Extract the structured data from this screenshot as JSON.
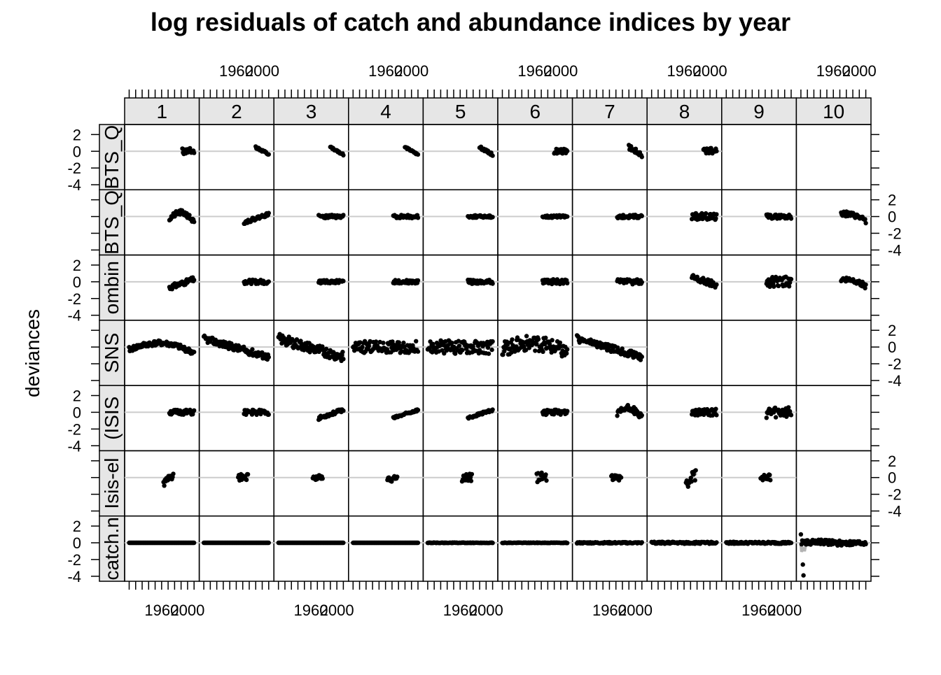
{
  "chart_data": {
    "type": "scatter",
    "title": "log residuals of catch and abundance indices by year",
    "xlabel": "",
    "ylabel": "deviances",
    "xlim": [
      1903,
      2018
    ],
    "ylim": [
      -4.6,
      3.2
    ],
    "x_tick_labels": [
      "1960",
      "2000"
    ],
    "y_tick_labels": [
      "2",
      "0",
      "-2",
      "-4"
    ],
    "y_ticks": [
      2,
      0,
      -2,
      -4
    ],
    "x_ticks": [
      1910,
      1920,
      1930,
      1940,
      1950,
      1960,
      1970,
      1980,
      1990,
      2000,
      2010
    ],
    "reference_line": 0,
    "grid": false,
    "point_color": "#000000",
    "smoother_color": "#b3b3b3",
    "refline_color": "#cccccc",
    "strip_color": "#e6e6e6",
    "ages": [
      "1",
      "2",
      "3",
      "4",
      "5",
      "6",
      "7",
      "8",
      "9",
      "10"
    ],
    "index_strip_labels": [
      "BTS_Q",
      "BTS_Q",
      "ombin",
      "SNS",
      "(ISIS",
      "Isis-el",
      "catch.n"
    ],
    "panels": [
      {
        "row": 0,
        "age": 1,
        "x0": 1992,
        "x1": 2010,
        "shape": "flat",
        "noise": 0.4,
        "seed": 11
      },
      {
        "row": 0,
        "age": 2,
        "x0": 1990,
        "x1": 2010,
        "shape": "down",
        "noise": 0.15,
        "seed": 12
      },
      {
        "row": 0,
        "age": 3,
        "x0": 1990,
        "x1": 2010,
        "shape": "down",
        "noise": 0.1,
        "seed": 13
      },
      {
        "row": 0,
        "age": 4,
        "x0": 1990,
        "x1": 2010,
        "shape": "down",
        "noise": 0.1,
        "seed": 14
      },
      {
        "row": 0,
        "age": 5,
        "x0": 1990,
        "x1": 2010,
        "shape": "down",
        "noise": 0.15,
        "seed": 15
      },
      {
        "row": 0,
        "age": 6,
        "x0": 1990,
        "x1": 2010,
        "shape": "flat",
        "noise": 0.3,
        "seed": 16
      },
      {
        "row": 0,
        "age": 7,
        "x0": 1990,
        "x1": 2010,
        "shape": "down",
        "noise": 0.3,
        "seed": 17
      },
      {
        "row": 0,
        "age": 8,
        "x0": 1990,
        "x1": 2010,
        "shape": "flat",
        "noise": 0.4,
        "seed": 18
      },
      {
        "row": 1,
        "age": 1,
        "x0": 1972,
        "x1": 2010,
        "shape": "hump",
        "noise": 0.3,
        "seed": 21
      },
      {
        "row": 1,
        "age": 2,
        "x0": 1972,
        "x1": 2010,
        "shape": "rise",
        "noise": 0.2,
        "seed": 22
      },
      {
        "row": 1,
        "age": 3,
        "x0": 1972,
        "x1": 2010,
        "shape": "flat",
        "noise": 0.2,
        "seed": 23
      },
      {
        "row": 1,
        "age": 4,
        "x0": 1972,
        "x1": 2010,
        "shape": "flat",
        "noise": 0.2,
        "seed": 24
      },
      {
        "row": 1,
        "age": 5,
        "x0": 1972,
        "x1": 2010,
        "shape": "flat",
        "noise": 0.15,
        "seed": 25
      },
      {
        "row": 1,
        "age": 6,
        "x0": 1972,
        "x1": 2010,
        "shape": "flat",
        "noise": 0.15,
        "seed": 26
      },
      {
        "row": 1,
        "age": 7,
        "x0": 1972,
        "x1": 2010,
        "shape": "flat",
        "noise": 0.2,
        "seed": 27
      },
      {
        "row": 1,
        "age": 8,
        "x0": 1972,
        "x1": 2010,
        "shape": "flat",
        "noise": 0.4,
        "seed": 28
      },
      {
        "row": 1,
        "age": 9,
        "x0": 1972,
        "x1": 2010,
        "shape": "flat",
        "noise": 0.25,
        "seed": 29
      },
      {
        "row": 1,
        "age": 10,
        "x0": 1972,
        "x1": 2010,
        "shape": "tail",
        "noise": 0.3,
        "seed": 30
      },
      {
        "row": 2,
        "age": 1,
        "x0": 1972,
        "x1": 2010,
        "shape": "rise",
        "noise": 0.3,
        "seed": 31
      },
      {
        "row": 2,
        "age": 2,
        "x0": 1972,
        "x1": 2010,
        "shape": "flat",
        "noise": 0.25,
        "seed": 32
      },
      {
        "row": 2,
        "age": 3,
        "x0": 1972,
        "x1": 2010,
        "shape": "flat",
        "noise": 0.2,
        "seed": 33
      },
      {
        "row": 2,
        "age": 4,
        "x0": 1972,
        "x1": 2010,
        "shape": "flat",
        "noise": 0.2,
        "seed": 34
      },
      {
        "row": 2,
        "age": 5,
        "x0": 1972,
        "x1": 2010,
        "shape": "flat",
        "noise": 0.25,
        "seed": 35
      },
      {
        "row": 2,
        "age": 6,
        "x0": 1972,
        "x1": 2010,
        "shape": "flat",
        "noise": 0.3,
        "seed": 36
      },
      {
        "row": 2,
        "age": 7,
        "x0": 1972,
        "x1": 2010,
        "shape": "flat",
        "noise": 0.3,
        "seed": 37
      },
      {
        "row": 2,
        "age": 8,
        "x0": 1972,
        "x1": 2010,
        "shape": "down",
        "noise": 0.4,
        "seed": 38
      },
      {
        "row": 2,
        "age": 9,
        "x0": 1972,
        "x1": 2010,
        "shape": "flat",
        "noise": 0.6,
        "seed": 39
      },
      {
        "row": 2,
        "age": 10,
        "x0": 1972,
        "x1": 2010,
        "shape": "tail",
        "noise": 0.3,
        "seed": 40
      },
      {
        "row": 3,
        "age": 1,
        "x0": 1910,
        "x1": 2010,
        "shape": "hump",
        "noise": 0.3,
        "seed": 41
      },
      {
        "row": 3,
        "age": 2,
        "x0": 1910,
        "x1": 2010,
        "shape": "trend",
        "noise": 0.4,
        "seed": 42
      },
      {
        "row": 3,
        "age": 3,
        "x0": 1910,
        "x1": 2010,
        "shape": "trend",
        "noise": 0.6,
        "seed": 43
      },
      {
        "row": 3,
        "age": 4,
        "x0": 1910,
        "x1": 2010,
        "shape": "flat",
        "noise": 0.7,
        "seed": 44
      },
      {
        "row": 3,
        "age": 5,
        "x0": 1910,
        "x1": 2010,
        "shape": "flat",
        "noise": 0.8,
        "seed": 45
      },
      {
        "row": 3,
        "age": 6,
        "x0": 1910,
        "x1": 2010,
        "shape": "hump",
        "noise": 0.9,
        "seed": 46
      },
      {
        "row": 3,
        "age": 7,
        "x0": 1910,
        "x1": 2010,
        "shape": "trend",
        "noise": 0.4,
        "seed": 47
      },
      {
        "row": 4,
        "age": 1,
        "x0": 1972,
        "x1": 2010,
        "shape": "flat",
        "noise": 0.3,
        "seed": 51
      },
      {
        "row": 4,
        "age": 2,
        "x0": 1972,
        "x1": 2010,
        "shape": "flat",
        "noise": 0.3,
        "seed": 52
      },
      {
        "row": 4,
        "age": 3,
        "x0": 1972,
        "x1": 2010,
        "shape": "rise",
        "noise": 0.2,
        "seed": 53
      },
      {
        "row": 4,
        "age": 4,
        "x0": 1972,
        "x1": 2010,
        "shape": "rise",
        "noise": 0.15,
        "seed": 54
      },
      {
        "row": 4,
        "age": 5,
        "x0": 1972,
        "x1": 2010,
        "shape": "rise",
        "noise": 0.15,
        "seed": 55
      },
      {
        "row": 4,
        "age": 6,
        "x0": 1972,
        "x1": 2010,
        "shape": "flat",
        "noise": 0.3,
        "seed": 56
      },
      {
        "row": 4,
        "age": 7,
        "x0": 1972,
        "x1": 2010,
        "shape": "hump",
        "noise": 0.4,
        "seed": 57
      },
      {
        "row": 4,
        "age": 8,
        "x0": 1972,
        "x1": 2010,
        "shape": "flat",
        "noise": 0.4,
        "seed": 58
      },
      {
        "row": 4,
        "age": 9,
        "x0": 1972,
        "x1": 2010,
        "shape": "flat",
        "noise": 0.7,
        "seed": 59
      },
      {
        "row": 5,
        "age": 1,
        "x0": 1963,
        "x1": 1978,
        "shape": "rise",
        "noise": 0.4,
        "seed": 61
      },
      {
        "row": 5,
        "age": 2,
        "x0": 1963,
        "x1": 1978,
        "shape": "flat",
        "noise": 0.4,
        "seed": 62
      },
      {
        "row": 5,
        "age": 3,
        "x0": 1963,
        "x1": 1978,
        "shape": "flat",
        "noise": 0.3,
        "seed": 63
      },
      {
        "row": 5,
        "age": 4,
        "x0": 1963,
        "x1": 1978,
        "shape": "flat",
        "noise": 0.5,
        "seed": 64
      },
      {
        "row": 5,
        "age": 5,
        "x0": 1963,
        "x1": 1978,
        "shape": "flat",
        "noise": 0.5,
        "seed": 65
      },
      {
        "row": 5,
        "age": 6,
        "x0": 1963,
        "x1": 1978,
        "shape": "flat",
        "noise": 0.6,
        "seed": 66
      },
      {
        "row": 5,
        "age": 7,
        "x0": 1963,
        "x1": 1978,
        "shape": "flat",
        "noise": 0.4,
        "seed": 67
      },
      {
        "row": 5,
        "age": 8,
        "x0": 1963,
        "x1": 1978,
        "shape": "rise",
        "noise": 0.9,
        "seed": 68
      },
      {
        "row": 5,
        "age": 9,
        "x0": 1963,
        "x1": 1978,
        "shape": "flat",
        "noise": 0.4,
        "seed": 69
      },
      {
        "row": 6,
        "age": 1,
        "x0": 1910,
        "x1": 2010,
        "shape": "zero",
        "noise": 0.0,
        "seed": 71
      },
      {
        "row": 6,
        "age": 2,
        "x0": 1910,
        "x1": 2010,
        "shape": "zero",
        "noise": 0.0,
        "seed": 72
      },
      {
        "row": 6,
        "age": 3,
        "x0": 1910,
        "x1": 2010,
        "shape": "zero",
        "noise": 0.0,
        "seed": 73
      },
      {
        "row": 6,
        "age": 4,
        "x0": 1910,
        "x1": 2010,
        "shape": "zero",
        "noise": 0.0,
        "seed": 74
      },
      {
        "row": 6,
        "age": 5,
        "x0": 1910,
        "x1": 2010,
        "shape": "zero",
        "noise": 0.03,
        "seed": 75
      },
      {
        "row": 6,
        "age": 6,
        "x0": 1910,
        "x1": 2010,
        "shape": "zero",
        "noise": 0.03,
        "seed": 76
      },
      {
        "row": 6,
        "age": 7,
        "x0": 1910,
        "x1": 2010,
        "shape": "zero",
        "noise": 0.08,
        "seed": 77
      },
      {
        "row": 6,
        "age": 8,
        "x0": 1910,
        "x1": 2010,
        "shape": "zero",
        "noise": 0.12,
        "seed": 78
      },
      {
        "row": 6,
        "age": 9,
        "x0": 1910,
        "x1": 2010,
        "shape": "zero",
        "noise": 0.12,
        "seed": 79
      },
      {
        "row": 6,
        "age": 10,
        "x0": 1910,
        "x1": 2010,
        "shape": "catch10",
        "noise": 0.3,
        "seed": 80
      }
    ]
  }
}
